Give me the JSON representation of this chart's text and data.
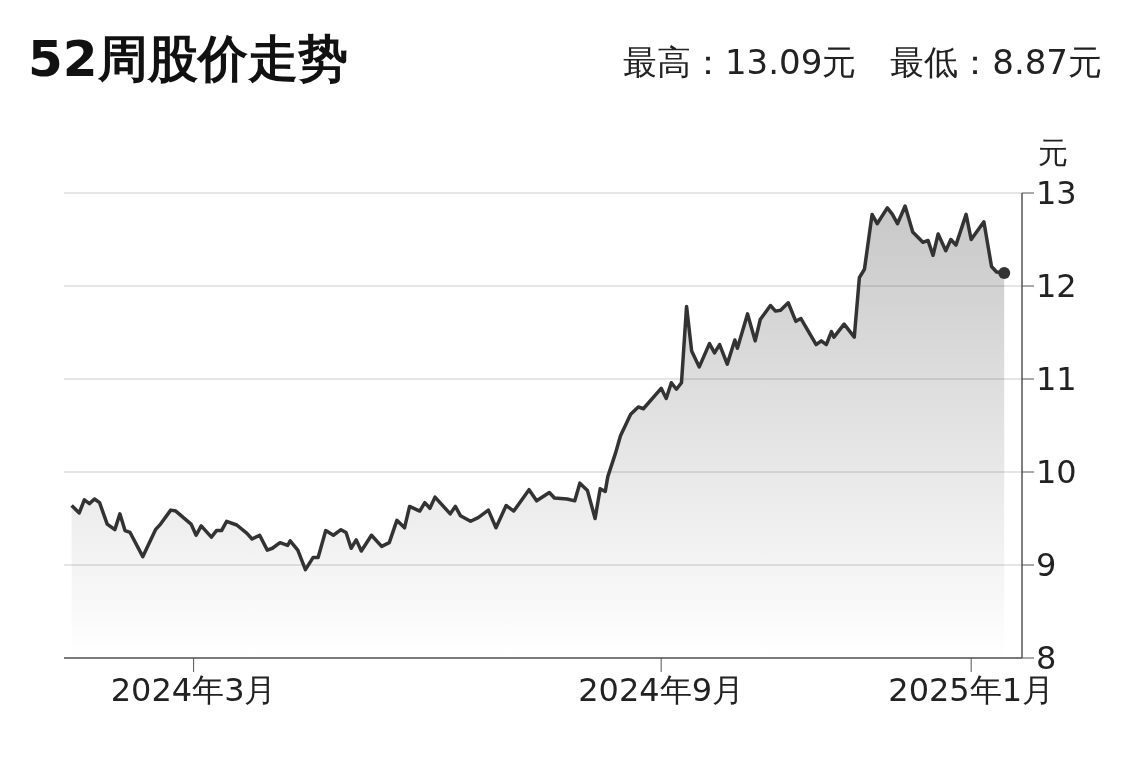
{
  "chart_data": {
    "type": "area",
    "title": "52周股价走势",
    "subtitle": "最高：13.09元　最低：8.87元",
    "ylabel": "元",
    "x": [
      "2024-01-13",
      "2024-01-16",
      "2024-01-18",
      "2024-01-20",
      "2024-01-22",
      "2024-01-24",
      "2024-01-27",
      "2024-01-30",
      "2024-02-01",
      "2024-02-03",
      "2024-02-05",
      "2024-02-10",
      "2024-02-15",
      "2024-02-17",
      "2024-02-21",
      "2024-02-23",
      "2024-02-29",
      "2024-03-02",
      "2024-03-04",
      "2024-03-08",
      "2024-03-10",
      "2024-03-12",
      "2024-03-14",
      "2024-03-18",
      "2024-03-22",
      "2024-03-24",
      "2024-03-27",
      "2024-03-30",
      "2024-04-01",
      "2024-04-04",
      "2024-04-07",
      "2024-04-08",
      "2024-04-11",
      "2024-04-14",
      "2024-04-17",
      "2024-04-19",
      "2024-04-22",
      "2024-04-25",
      "2024-04-28",
      "2024-04-30",
      "2024-05-02",
      "2024-05-04",
      "2024-05-06",
      "2024-05-10",
      "2024-05-14",
      "2024-05-17",
      "2024-05-20",
      "2024-05-23",
      "2024-05-25",
      "2024-05-29",
      "2024-05-31",
      "2024-06-02",
      "2024-06-04",
      "2024-06-10",
      "2024-06-12",
      "2024-06-14",
      "2024-06-18",
      "2024-06-21",
      "2024-06-25",
      "2024-06-28",
      "2024-07-02",
      "2024-07-05",
      "2024-07-11",
      "2024-07-14",
      "2024-07-19",
      "2024-07-21",
      "2024-07-26",
      "2024-07-29",
      "2024-07-31",
      "2024-08-03",
      "2024-08-06",
      "2024-08-08",
      "2024-08-10",
      "2024-08-11",
      "2024-08-14",
      "2024-08-16",
      "2024-08-20",
      "2024-08-23",
      "2024-08-25",
      "2024-09-01",
      "2024-09-03",
      "2024-09-05",
      "2024-09-07",
      "2024-09-09",
      "2024-09-11",
      "2024-09-13",
      "2024-09-16",
      "2024-09-20",
      "2024-09-22",
      "2024-09-24",
      "2024-09-27",
      "2024-09-30",
      "2024-10-01",
      "2024-10-05",
      "2024-10-08",
      "2024-10-10",
      "2024-10-14",
      "2024-10-16",
      "2024-10-18",
      "2024-10-21",
      "2024-10-24",
      "2024-10-26",
      "2024-11-01",
      "2024-11-03",
      "2024-11-05",
      "2024-11-07",
      "2024-11-08",
      "2024-11-12",
      "2024-11-16",
      "2024-11-18",
      "2024-11-20",
      "2024-11-23",
      "2024-11-25",
      "2024-11-29",
      "2024-12-01",
      "2024-12-03",
      "2024-12-06",
      "2024-12-09",
      "2024-12-13",
      "2024-12-15",
      "2024-12-17",
      "2024-12-19",
      "2024-12-22",
      "2024-12-24",
      "2024-12-26",
      "2024-12-30",
      "2025-01-01",
      "2025-01-06",
      "2025-01-09",
      "2025-01-11",
      "2025-01-14"
    ],
    "series": [
      {
        "color": "#333333",
        "values": [
          9.64,
          9.56,
          9.7,
          9.66,
          9.71,
          9.67,
          9.44,
          9.38,
          9.55,
          9.37,
          9.35,
          9.09,
          9.38,
          9.44,
          9.59,
          9.58,
          9.44,
          9.32,
          9.42,
          9.3,
          9.37,
          9.37,
          9.47,
          9.43,
          9.34,
          9.28,
          9.32,
          9.16,
          9.18,
          9.24,
          9.21,
          9.26,
          9.16,
          8.95,
          9.08,
          9.08,
          9.37,
          9.32,
          9.38,
          9.35,
          9.18,
          9.27,
          9.15,
          9.32,
          9.2,
          9.24,
          9.48,
          9.4,
          9.63,
          9.58,
          9.67,
          9.61,
          9.73,
          9.55,
          9.63,
          9.53,
          9.47,
          9.51,
          9.59,
          9.4,
          9.64,
          9.58,
          9.81,
          9.69,
          9.78,
          9.72,
          9.71,
          9.69,
          9.88,
          9.8,
          9.5,
          9.82,
          9.79,
          9.95,
          10.2,
          10.39,
          10.62,
          10.7,
          10.68,
          10.9,
          10.79,
          10.96,
          10.89,
          10.96,
          11.78,
          11.3,
          11.13,
          11.38,
          11.28,
          11.37,
          11.16,
          11.42,
          11.33,
          11.7,
          11.41,
          11.64,
          11.79,
          11.73,
          11.74,
          11.82,
          11.62,
          11.65,
          11.37,
          11.41,
          11.37,
          11.51,
          11.45,
          11.59,
          11.45,
          12.09,
          12.18,
          12.77,
          12.67,
          12.84,
          12.77,
          12.67,
          12.86,
          12.58,
          12.47,
          12.49,
          12.33,
          12.56,
          12.38,
          12.5,
          12.44,
          12.77,
          12.5,
          12.69,
          12.21,
          12.15,
          12.14
        ]
      }
    ],
    "xlim": [
      "2024-01-10",
      "2025-01-21"
    ],
    "xticks": [
      {
        "value": "2024-03-01",
        "label": "2024年3月"
      },
      {
        "value": "2024-09-01",
        "label": "2024年9月"
      },
      {
        "value": "2025-01-01",
        "label": "2025年1月"
      }
    ],
    "ylim": [
      8,
      13
    ],
    "yticks": [
      8,
      9,
      10,
      11,
      12,
      13
    ],
    "grid": "y",
    "legend": false
  }
}
